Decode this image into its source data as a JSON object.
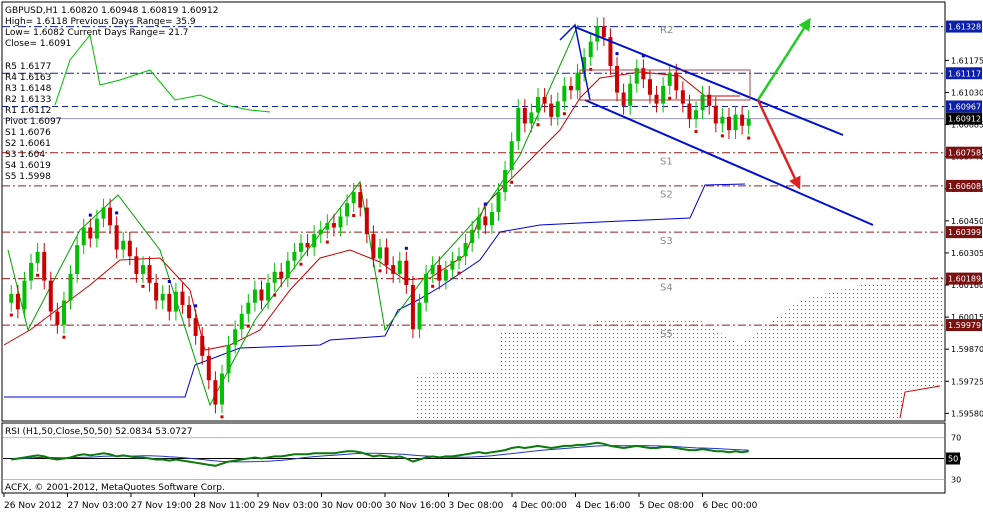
{
  "chart_data": {
    "type": "line",
    "symbol_header": "GBPUSD,H1  1.60820 1.60948 1.60819 1.60912",
    "info_lines": [
      "High= 1.6118   Previous Days Range= 35.9",
      "Low= 1.6082    Current Days Range= 21.7",
      "Close= 1.6091"
    ],
    "pivot_labels": [
      "R5 1.6177",
      "R4 1.6163",
      "R3 1.6148",
      "R2 1.6133",
      "R1 1.6112",
      "Pivot 1.6097",
      "S1 1.6076",
      "S2 1.6061",
      "S3 1.604",
      "S4 1.6019",
      "S5 1.5998"
    ],
    "price_axis_ticks": [
      "1.61175",
      "1.61030",
      "1.60885",
      "1.60740",
      "1.60595",
      "1.60450",
      "1.60305",
      "1.60160",
      "1.60015",
      "1.59870",
      "1.59725",
      "1.59580"
    ],
    "highlighted_prices": [
      {
        "value": 1.61328,
        "label": "1.61328",
        "color": "#0b1fa8",
        "style": "dashdot"
      },
      {
        "value": 1.61117,
        "label": "1.61117",
        "color": "#0b1fa8",
        "style": "dashdot"
      },
      {
        "value": 1.60967,
        "label": "1.60967",
        "color": "#0b1fa8",
        "style": "dashed"
      },
      {
        "value": 1.60912,
        "label": "1.60912",
        "color": "#000000",
        "style": "current"
      },
      {
        "value": 1.60758,
        "label": "1.60758",
        "color": "#a01818",
        "style": "dashdot"
      },
      {
        "value": 1.60608,
        "label": "1.60608",
        "color": "#a01818",
        "style": "dashdot"
      },
      {
        "value": 1.60399,
        "label": "1.60399",
        "color": "#a01818",
        "style": "dashdot"
      },
      {
        "value": 1.60189,
        "label": "1.60189",
        "color": "#a01818",
        "style": "dashdot"
      },
      {
        "value": 1.59979,
        "label": "1.59979",
        "color": "#a01818",
        "style": "dashdot"
      }
    ],
    "level_tags": [
      {
        "name": "R2",
        "value": 1.6133
      },
      {
        "name": "S1",
        "value": 1.6076
      },
      {
        "name": "S2",
        "value": 1.6061
      },
      {
        "name": "S3",
        "value": 1.604
      },
      {
        "name": "S4",
        "value": 1.6019
      },
      {
        "name": "S5",
        "value": 1.5998
      }
    ],
    "time_axis_labels": [
      "26 Nov 2012",
      "27 Nov 03:00",
      "27 Nov 19:00",
      "28 Nov 11:00",
      "29 Nov 03:00",
      "30 Nov 00:00",
      "30 Nov 16:00",
      "3 Dec 08:00",
      "4 Dec 00:00",
      "4 Dec 16:00",
      "5 Dec 08:00",
      "6 Dec 00:00"
    ],
    "ylim": [
      1.5955,
      1.6143
    ],
    "closes": [
      1.6012,
      1.6005,
      1.6018,
      1.6026,
      1.6031,
      1.6018,
      1.6004,
      1.5998,
      1.6009,
      1.6021,
      1.6034,
      1.6042,
      1.6037,
      1.6046,
      1.6051,
      1.6043,
      1.6032,
      1.6036,
      1.6029,
      1.6021,
      1.6025,
      1.6017,
      1.6009,
      1.6012,
      1.6004,
      1.6013,
      1.6007,
      1.6001,
      1.5993,
      1.5984,
      1.5973,
      1.5962,
      1.5976,
      1.5989,
      1.5996,
      1.6003,
      1.6008,
      1.6014,
      1.6009,
      1.6017,
      1.6022,
      1.6019,
      1.6027,
      1.6031,
      1.6035,
      1.6033,
      1.6039,
      1.6041,
      1.6044,
      1.6042,
      1.6047,
      1.6053,
      1.6058,
      1.6051,
      1.6039,
      1.6028,
      1.6033,
      1.6025,
      1.6021,
      1.6027,
      1.6016,
      1.5996,
      1.6008,
      1.6021,
      1.6025,
      1.6018,
      1.6023,
      1.6027,
      1.6029,
      1.6035,
      1.6041,
      1.6047,
      1.6043,
      1.6049,
      1.6058,
      1.6068,
      1.6081,
      1.6096,
      1.6089,
      1.6094,
      1.6101,
      1.6098,
      1.6092,
      1.6099,
      1.6106,
      1.6104,
      1.6112,
      1.6119,
      1.6126,
      1.6133,
      1.6128,
      1.6115,
      1.6103,
      1.6097,
      1.6107,
      1.6114,
      1.6109,
      1.6102,
      1.6098,
      1.6106,
      1.6112,
      1.6104,
      1.6098,
      1.6091,
      1.6095,
      1.6102,
      1.6097,
      1.6089,
      1.6092,
      1.6086,
      1.6093,
      1.6088,
      1.6091
    ],
    "rsi": {
      "label": "RSI (H1,50,Close,50,50) 52.0834 53.0727",
      "ticks": [
        "70",
        "50",
        "30"
      ],
      "value_label": "50",
      "levels": [
        70,
        50,
        30
      ],
      "ylim": [
        18,
        82
      ],
      "values": [
        49,
        50,
        51,
        52,
        53,
        52,
        50,
        49,
        50,
        51,
        53,
        54,
        53,
        54,
        55,
        54,
        52,
        53,
        52,
        51,
        51,
        50,
        49,
        49,
        48,
        49,
        48,
        47,
        46,
        45,
        44,
        43,
        45,
        47,
        48,
        49,
        50,
        51,
        50,
        51,
        52,
        52,
        53,
        54,
        54,
        54,
        55,
        55,
        55,
        55,
        56,
        57,
        57,
        56,
        54,
        52,
        53,
        52,
        51,
        52,
        50,
        47,
        49,
        51,
        52,
        51,
        52,
        52,
        53,
        54,
        55,
        56,
        55,
        56,
        57,
        58,
        60,
        61,
        60,
        61,
        62,
        61,
        60,
        61,
        62,
        62,
        63,
        63,
        64,
        65,
        64,
        62,
        61,
        60,
        61,
        62,
        61,
        60,
        60,
        61,
        61,
        60,
        59,
        58,
        58,
        59,
        58,
        57,
        57,
        56,
        57,
        56,
        57
      ]
    },
    "copyright": "ACFX, © 2001-2012, MetaQuotes Software Corp.",
    "colors": {
      "bull_candle": "#00c000",
      "bear_candle": "#cc0000",
      "resistance_line": "#0b1fa8",
      "support_line": "#a01818",
      "channel": "#0010d0",
      "cloud": "#2aa02a",
      "chikou": "#00c000",
      "kijun": "#0000cc",
      "tenkan": "#cc0000",
      "rsi_line": "#0a7a0a",
      "rsi_signal": "#2233cc",
      "arrow_up": "#22cc22",
      "arrow_down": "#dd2222"
    }
  }
}
